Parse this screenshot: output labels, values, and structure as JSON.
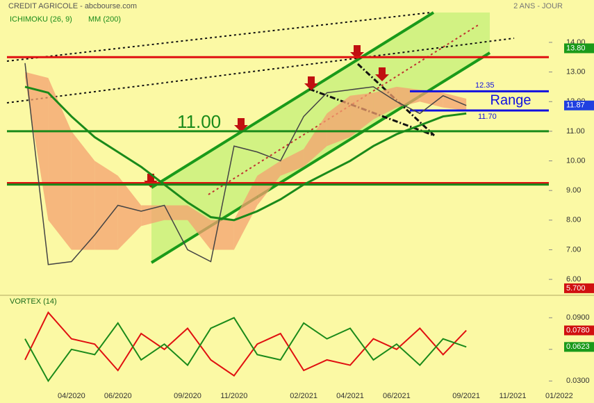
{
  "chart_data": {
    "type": "line",
    "title": "CREDIT AGRICOLE - abcbourse.com",
    "period": "2 ANS - JOUR",
    "indicators": [
      "ICHIMOKU (26, 9)",
      "MM (200)"
    ],
    "categories": [
      null,
      null,
      "04/2020",
      null,
      "06/2020",
      null,
      null,
      "09/2020",
      null,
      "11/2020",
      null,
      null,
      "02/2021",
      null,
      "04/2021",
      null,
      "06/2021",
      null,
      null,
      "09/2021",
      null,
      "11/2021",
      null,
      "01/2022"
    ],
    "series": [
      {
        "color": "#444444",
        "values": [
          13.3,
          6.5,
          6.6,
          7.5,
          8.5,
          8.3,
          8.5,
          7.0,
          6.6,
          10.5,
          10.3,
          10.0,
          11.5,
          12.3,
          12.4,
          12.5,
          12.0,
          11.6,
          12.2,
          11.87,
          null,
          null,
          null,
          null
        ]
      },
      {
        "color": "#1a8a1a",
        "values": [
          12.5,
          12.3,
          11.5,
          10.8,
          10.3,
          9.8,
          9.2,
          8.6,
          8.1,
          8.0,
          8.3,
          8.7,
          9.2,
          9.6,
          10.0,
          10.5,
          10.9,
          11.2,
          11.5,
          11.6,
          null,
          null,
          null,
          null
        ]
      }
    ],
    "cloud": {
      "color": "#f4a070",
      "upper": [
        13.0,
        12.8,
        11.0,
        10.0,
        9.5,
        8.5,
        8.5,
        8.5,
        8.0,
        8.0,
        9.5,
        10.0,
        10.4,
        11.6,
        12.2,
        12.3,
        12.5,
        12.4,
        12.3,
        12.1,
        null,
        null,
        null,
        null
      ],
      "lower": [
        12.8,
        8.0,
        7.0,
        7.0,
        7.0,
        7.8,
        8.0,
        8.0,
        7.0,
        7.0,
        8.5,
        9.5,
        9.8,
        10.5,
        10.8,
        11.4,
        11.8,
        12.0,
        11.8,
        11.7,
        null,
        null,
        null,
        null
      ]
    },
    "levels": [
      {
        "value": 13.5,
        "color": "#e01010"
      },
      {
        "value": 9.25,
        "color": "#e01010"
      },
      {
        "value": 11.0,
        "color": "#1a8a1a"
      },
      {
        "value": 9.2,
        "color": "#1a8a1a"
      }
    ],
    "annotation": "11.00",
    "range": {
      "label": "Range",
      "top": 12.35,
      "top_label": "12.35",
      "bottom": 11.7,
      "bottom_label": "11.70",
      "color": "#1010e0"
    },
    "price_tags": [
      {
        "value": 13.8,
        "label": "13.80",
        "color": "#1a9a1a"
      },
      {
        "value": 11.87,
        "label": "11.87",
        "color": "#2040e0"
      },
      {
        "value": 5.7,
        "label": "5.700",
        "color": "#d01010"
      }
    ],
    "ylim": [
      5.58,
      15.43
    ],
    "yticks": [
      {
        "value": 6,
        "label": "6.00"
      },
      {
        "value": 7,
        "label": "7.00"
      },
      {
        "value": 8,
        "label": "8.00"
      },
      {
        "value": 9,
        "label": "9.00"
      },
      {
        "value": 10,
        "label": "10.00"
      },
      {
        "value": 11,
        "label": "11.00"
      },
      {
        "value": 12,
        "label": "12.00"
      },
      {
        "value": 13,
        "label": "13.00"
      },
      {
        "value": 14,
        "label": "14.00"
      }
    ],
    "vortex": {
      "title": "VORTEX (14)",
      "series": [
        {
          "color": "#e01010",
          "values": [
            0.05,
            0.095,
            0.07,
            0.065,
            0.04,
            0.075,
            0.06,
            0.08,
            0.05,
            0.035,
            0.065,
            0.075,
            0.04,
            0.05,
            0.045,
            0.07,
            0.06,
            0.08,
            0.055,
            0.078,
            null,
            null,
            null,
            null
          ]
        },
        {
          "color": "#1a8a1a",
          "values": [
            0.07,
            0.03,
            0.06,
            0.055,
            0.085,
            0.05,
            0.065,
            0.045,
            0.08,
            0.09,
            0.055,
            0.05,
            0.085,
            0.07,
            0.08,
            0.05,
            0.065,
            0.045,
            0.07,
            0.0623,
            null,
            null,
            null,
            null
          ]
        }
      ],
      "price_tags": [
        {
          "value": 0.078,
          "label": "0.0780",
          "color": "#d01010"
        },
        {
          "value": 0.0623,
          "label": "0.0623",
          "color": "#1a9a1a"
        }
      ],
      "ylim": [
        0.019,
        0.108
      ],
      "yticks": [
        {
          "value": 0.03,
          "label": "0.0300"
        },
        {
          "value": 0.06,
          "label": "0.0600"
        },
        {
          "value": 0.09,
          "label": "0.0900"
        }
      ]
    }
  }
}
